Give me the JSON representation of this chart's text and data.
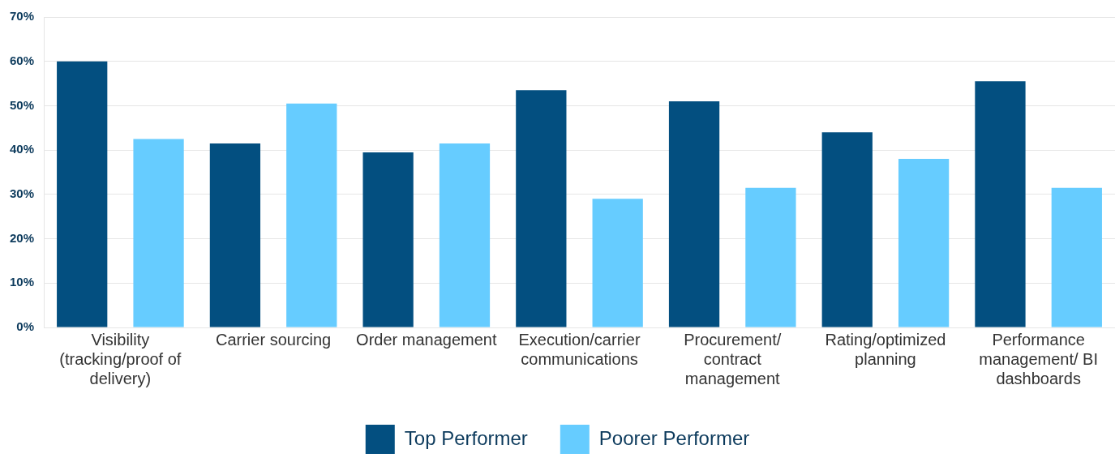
{
  "chart_data": {
    "type": "bar",
    "categories": [
      "Visibility (tracking/proof of delivery)",
      "Carrier sourcing",
      "Order management",
      "Execution/carrier communications",
      "Procurement/ contract management",
      "Rating/optimized planning",
      "Performance management/ BI dashboards"
    ],
    "series": [
      {
        "name": "Top Performer",
        "color": "#034f80",
        "values": [
          60,
          41.5,
          39.5,
          53.5,
          51,
          44,
          55.5
        ]
      },
      {
        "name": "Poorer Performer",
        "color": "#66ccff",
        "values": [
          42.5,
          50.5,
          41.5,
          29,
          31.5,
          38,
          31.5
        ]
      }
    ],
    "ylim": [
      0,
      70
    ],
    "yticks": [
      {
        "value": 0,
        "label": "0%"
      },
      {
        "value": 10,
        "label": "10%"
      },
      {
        "value": 20,
        "label": "20%"
      },
      {
        "value": 30,
        "label": "30%"
      },
      {
        "value": 40,
        "label": "40%"
      },
      {
        "value": 50,
        "label": "50%"
      },
      {
        "value": 60,
        "label": "60%"
      },
      {
        "value": 70,
        "label": "70%"
      }
    ],
    "grid": "y",
    "legend": "bottom"
  }
}
